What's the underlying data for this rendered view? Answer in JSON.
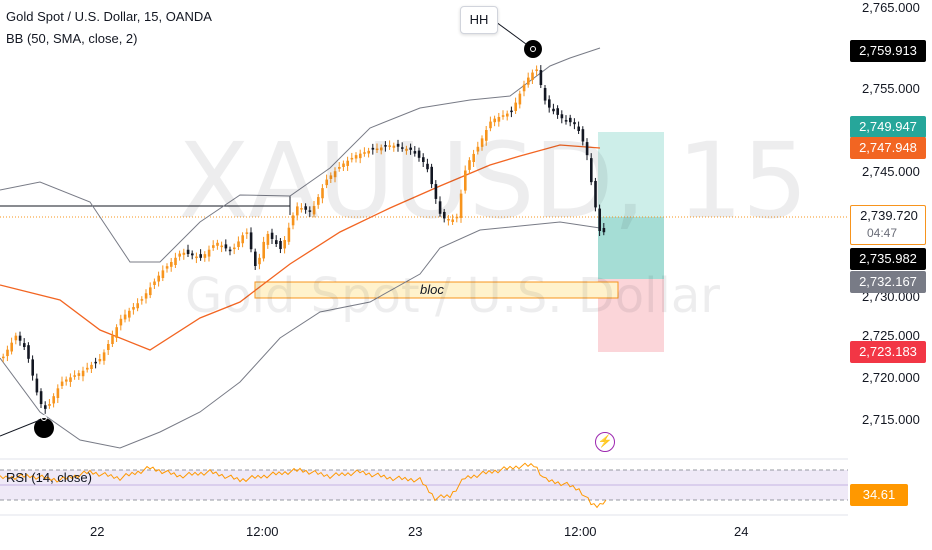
{
  "legend": {
    "symbol_line": "Gold Spot / U.S. Dollar, 15, OANDA",
    "indicator_line": "BB (50, SMA, close, 2)"
  },
  "watermark": {
    "symbol": "XAUUSD, 15",
    "description": "Gold Spot / U.S. Dollar"
  },
  "drawings": {
    "hh_label": "HH",
    "bloc_label": "bloc"
  },
  "price_scale": {
    "ticks": [
      "2,765.000",
      "2,755.000",
      "2,745.000",
      "2,730.000",
      "2,725.000",
      "2,720.000",
      "2,715.000"
    ],
    "tags": {
      "high": "2,759.913",
      "target": "2,749.947",
      "bb_basis": "2,747.948",
      "current": "2,739.720",
      "countdown": "04:47",
      "entry": "2,735.982",
      "bloc_level": "2,732.167",
      "stop": "2,723.183"
    }
  },
  "time_scale": {
    "labels": [
      "22",
      "12:00",
      "23",
      "12:00",
      "24"
    ]
  },
  "rsi": {
    "title": "RSI (14, close)",
    "value": "34.61"
  },
  "colors": {
    "up_candle": "#f7941d",
    "down_candle": "#131722",
    "bb_bands": "#787b86",
    "bb_basis": "#f26522",
    "target_tag": "#26a69a",
    "stop_tag": "#f23645",
    "rsi_line": "#ff9800",
    "rsi_band": "#7e57c2"
  },
  "icons": {
    "lightning": "lightning-icon"
  }
}
